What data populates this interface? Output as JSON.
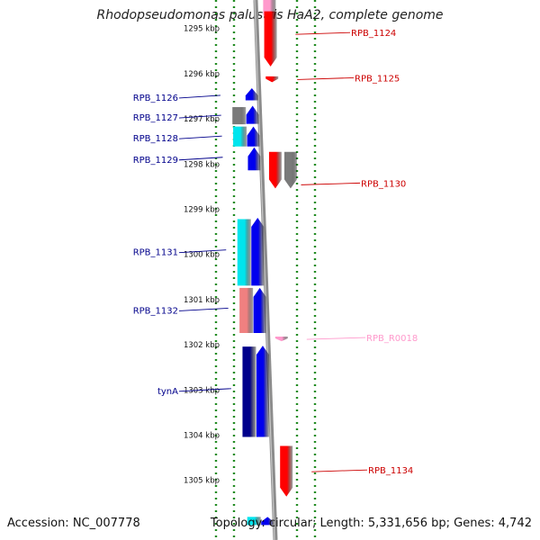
{
  "title": "Rhodopseudomonas palustris HaA2, complete genome",
  "footer": {
    "accession": "Accession: NC_007778",
    "topology": "Topology: circular; Length: 5,331,656 bp; Genes: 4,742"
  },
  "ruler_unit": "kbp",
  "ruler_ticks": [
    1295,
    1296,
    1297,
    1298,
    1299,
    1300,
    1301,
    1302,
    1303,
    1304,
    1305
  ],
  "colors": {
    "ruler_dots": "#228b22",
    "backbone": "#8c8c8c",
    "red": "#ff0000",
    "gray": "#7a7a7a",
    "blue": "#0000ee",
    "cyan": "#00e5ee",
    "salmon": "#f08080",
    "pink": "#ff99cc",
    "navy": "#00008b",
    "label_left": "#00008b",
    "label_right": "#cc0000",
    "label_rna": "#ff99cc"
  },
  "features": [
    {
      "track": "r1",
      "start": 1294.3,
      "end": 1294.9,
      "strand": "+",
      "color": "pink"
    },
    {
      "track": "r1",
      "start": 1294.63,
      "end": 1295.85,
      "strand": "+",
      "color": "red"
    },
    {
      "track": "r1",
      "start": 1296.07,
      "end": 1296.2,
      "strand": "+",
      "color": "red"
    },
    {
      "track": "r1",
      "start": 1297.74,
      "end": 1298.55,
      "strand": "+",
      "color": "red"
    },
    {
      "track": "r2",
      "start": 1297.74,
      "end": 1298.55,
      "strand": "+",
      "color": "gray"
    },
    {
      "track": "r1",
      "start": 1301.83,
      "end": 1301.93,
      "strand": "+",
      "color": "pink"
    },
    {
      "track": "r1",
      "start": 1304.25,
      "end": 1305.37,
      "strand": "+",
      "color": "red"
    },
    {
      "track": "l1",
      "start": 1296.33,
      "end": 1296.6,
      "strand": "-",
      "color": "blue"
    },
    {
      "track": "l2",
      "start": 1296.75,
      "end": 1297.13,
      "strand": "",
      "color": "gray"
    },
    {
      "track": "l1",
      "start": 1296.72,
      "end": 1297.12,
      "strand": "-",
      "color": "blue"
    },
    {
      "track": "l2",
      "start": 1297.18,
      "end": 1297.62,
      "strand": "",
      "color": "cyan"
    },
    {
      "track": "l1",
      "start": 1297.18,
      "end": 1297.62,
      "strand": "-",
      "color": "blue"
    },
    {
      "track": "l1",
      "start": 1297.64,
      "end": 1298.15,
      "strand": "-",
      "color": "blue"
    },
    {
      "track": "l2",
      "start": 1299.23,
      "end": 1300.7,
      "strand": "",
      "color": "cyan"
    },
    {
      "track": "l1",
      "start": 1299.2,
      "end": 1300.7,
      "strand": "-",
      "color": "blue"
    },
    {
      "track": "l2",
      "start": 1300.75,
      "end": 1301.75,
      "strand": "",
      "color": "salmon"
    },
    {
      "track": "l1",
      "start": 1300.75,
      "end": 1301.75,
      "strand": "-",
      "color": "blue"
    },
    {
      "track": "l2",
      "start": 1302.05,
      "end": 1304.05,
      "strand": "",
      "color": "navy"
    },
    {
      "track": "l1",
      "start": 1302.03,
      "end": 1304.05,
      "strand": "-",
      "color": "blue"
    },
    {
      "track": "l2",
      "start": 1305.82,
      "end": 1306.0,
      "strand": "",
      "color": "cyan"
    },
    {
      "track": "l1",
      "start": 1305.82,
      "end": 1306.0,
      "strand": "-",
      "color": "blue"
    }
  ],
  "labels": [
    {
      "side": "right",
      "text": "RPB_1124",
      "pos": 1295.12,
      "color": "red"
    },
    {
      "side": "right",
      "text": "RPB_1125",
      "pos": 1296.12,
      "color": "red"
    },
    {
      "side": "left",
      "text": "RPB_1126",
      "pos": 1296.53,
      "color": "blue"
    },
    {
      "side": "left",
      "text": "RPB_1127",
      "pos": 1296.97,
      "color": "blue"
    },
    {
      "side": "left",
      "text": "RPB_1128",
      "pos": 1297.43,
      "color": "blue"
    },
    {
      "side": "left",
      "text": "RPB_1129",
      "pos": 1297.9,
      "color": "blue"
    },
    {
      "side": "right",
      "text": "RPB_1130",
      "pos": 1298.45,
      "color": "red"
    },
    {
      "side": "left",
      "text": "RPB_1131",
      "pos": 1299.95,
      "color": "blue"
    },
    {
      "side": "left",
      "text": "RPB_1132",
      "pos": 1301.24,
      "color": "blue"
    },
    {
      "side": "right",
      "text": "RPB_R0018",
      "pos": 1301.87,
      "color": "pink"
    },
    {
      "side": "left",
      "text": "tynA",
      "pos": 1303.02,
      "color": "blue"
    },
    {
      "side": "right",
      "text": "RPB_1134",
      "pos": 1304.8,
      "color": "red"
    }
  ]
}
